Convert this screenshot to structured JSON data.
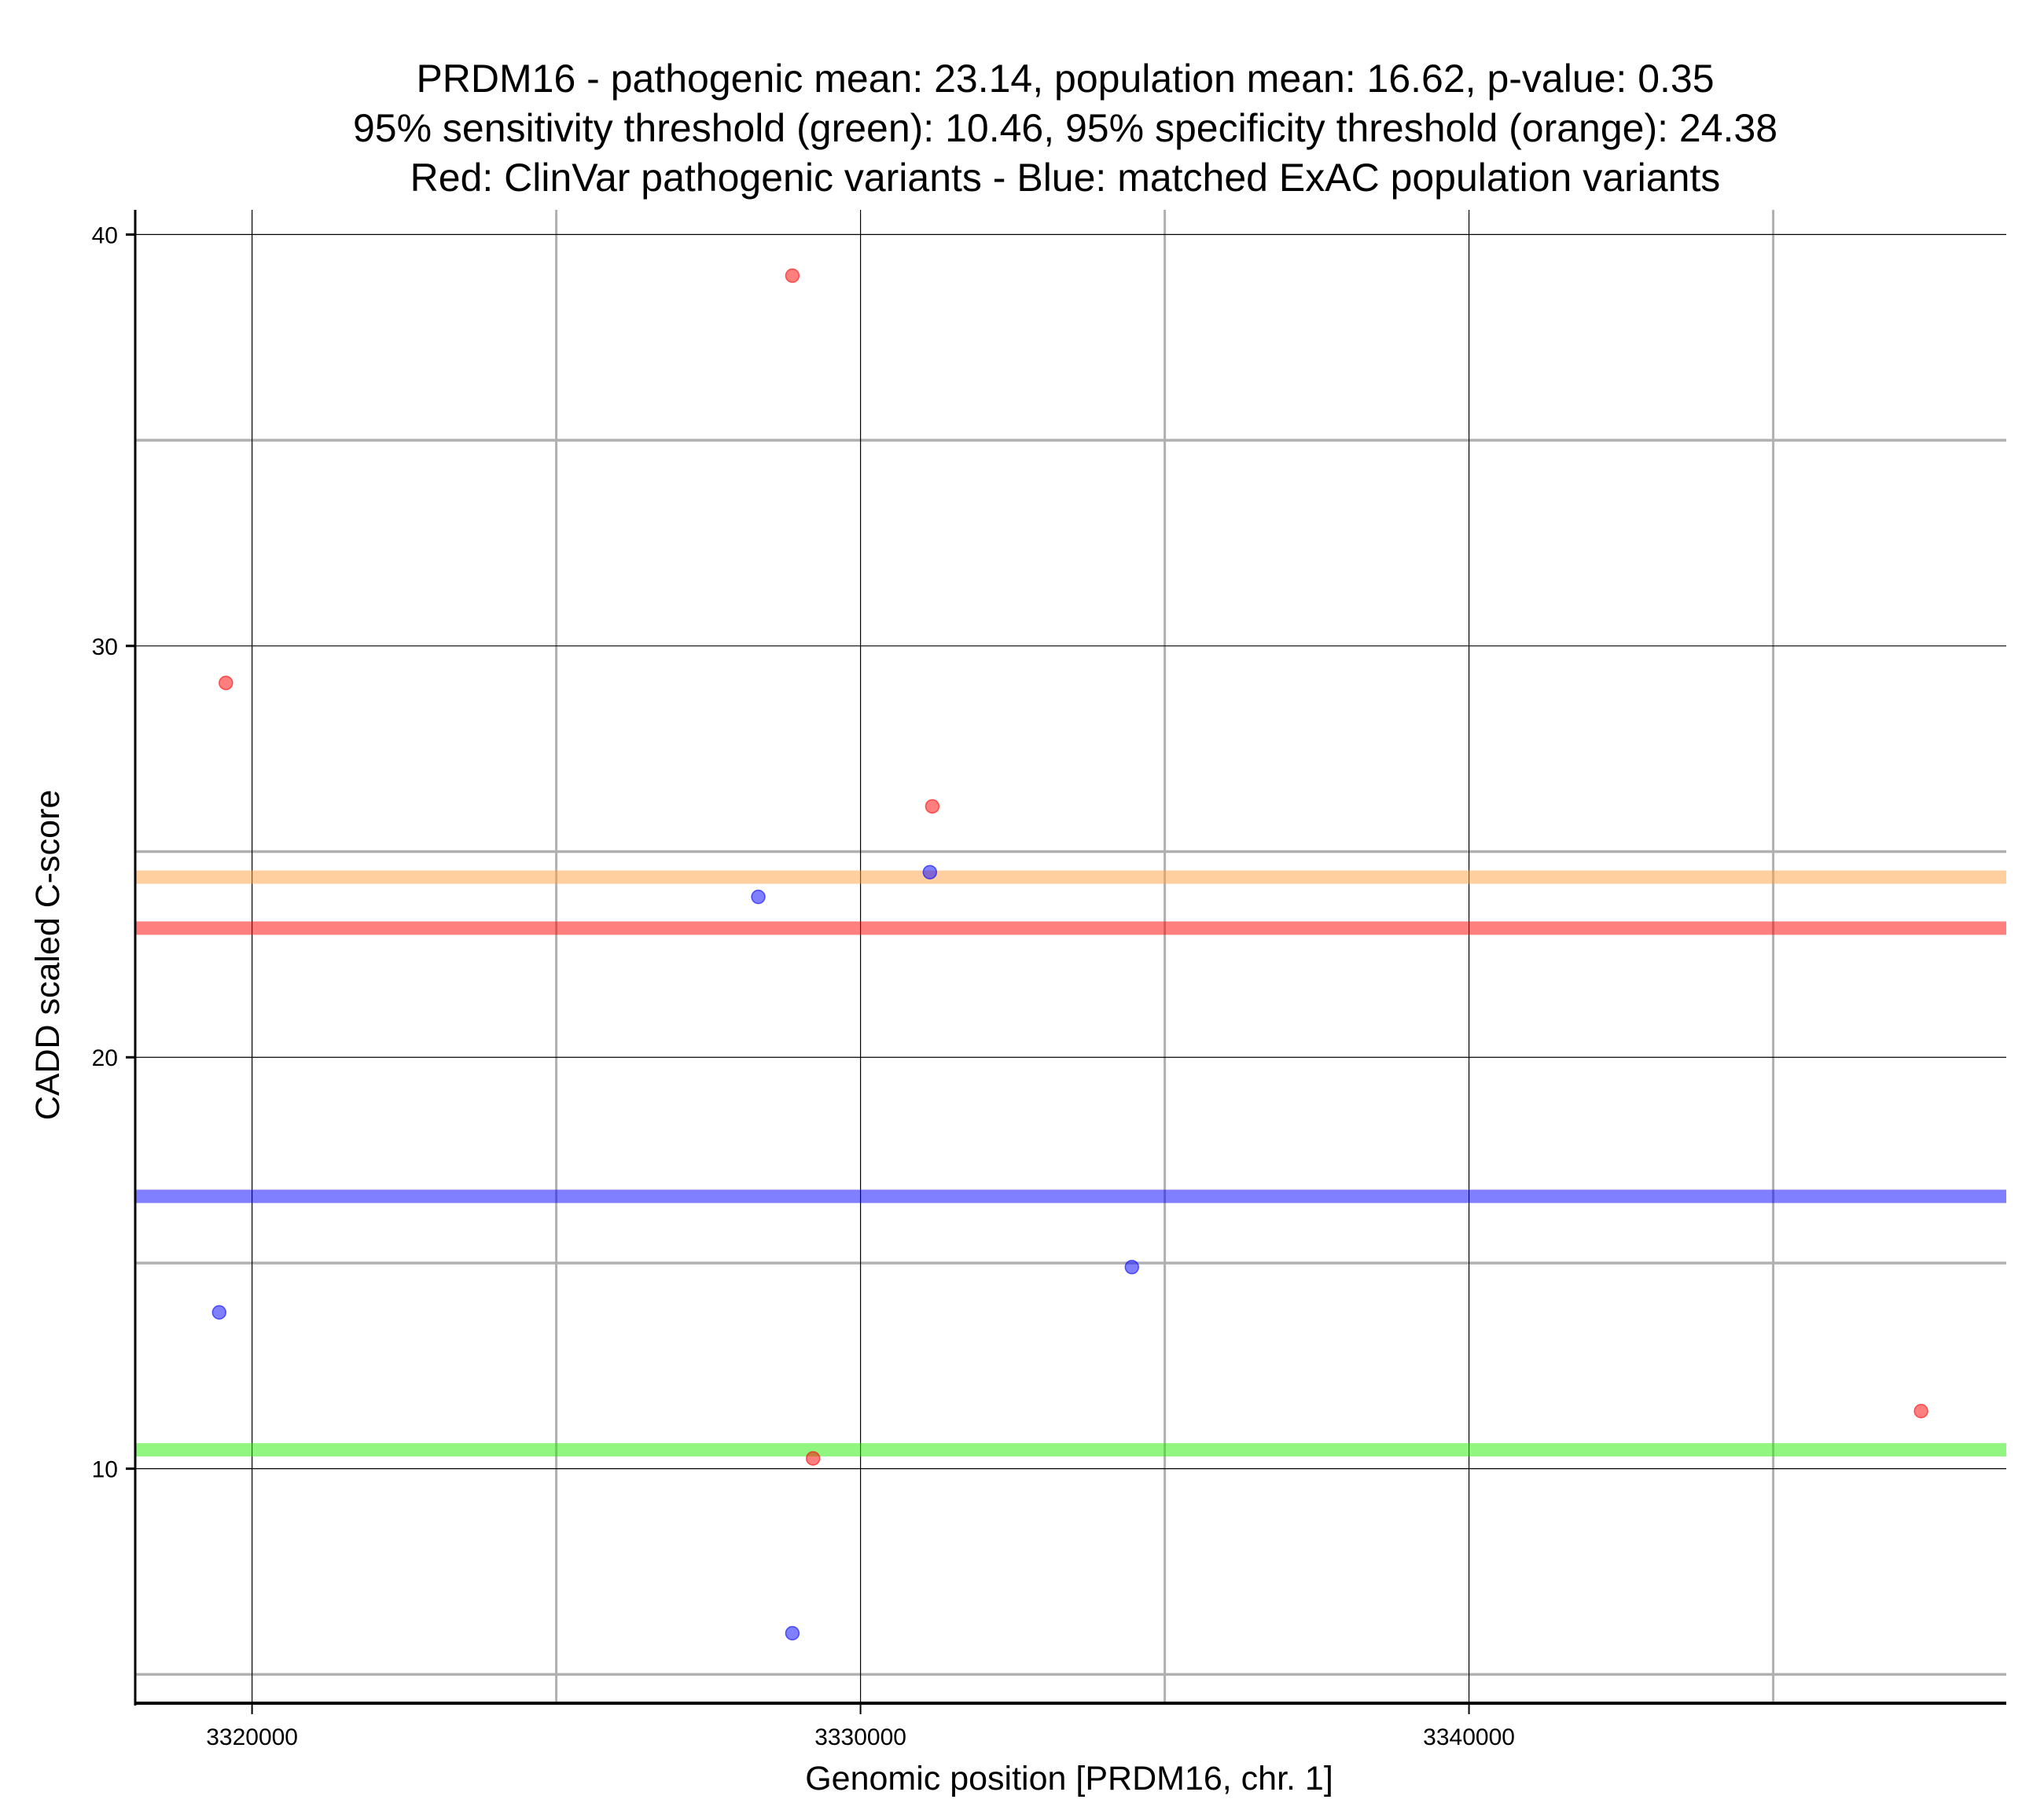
{
  "chart_data": {
    "type": "scatter",
    "title": [
      "PRDM16 - pathogenic mean: 23.14, population mean: 16.62, p-value: 0.35",
      "95% sensitivity threshold (green): 10.46, 95% specificity threshold (orange): 24.38",
      "Red: ClinVar pathogenic variants - Blue: matched ExAC population variants"
    ],
    "xlabel": "Genomic position [PRDM16, chr. 1]",
    "ylabel": "CADD scaled C-score",
    "xlim": [
      3318080,
      3348830
    ],
    "ylim": [
      4.3,
      40.6
    ],
    "xticks": [
      3320000,
      3330000,
      3340000
    ],
    "xtick_labels": [
      "3320000",
      "3330000",
      "3340000"
    ],
    "xminor": [
      3325000,
      3335000,
      3345000
    ],
    "yticks": [
      10,
      20,
      30,
      40
    ],
    "ytick_labels": [
      "10",
      "20",
      "30",
      "40"
    ],
    "yminor": [
      5,
      15,
      25,
      35
    ],
    "grid": true,
    "hlines": [
      {
        "name": "specificity-threshold",
        "value": 24.38,
        "color": "#ffa040"
      },
      {
        "name": "pathogenic-mean",
        "value": 23.14,
        "color": "#ff0000"
      },
      {
        "name": "population-mean",
        "value": 16.62,
        "color": "#0000ff"
      },
      {
        "name": "sensitivity-threshold",
        "value": 10.46,
        "color": "#22ee00"
      }
    ],
    "series": [
      {
        "name": "ClinVar pathogenic",
        "color": "#ff0000",
        "points": [
          [
            3328880,
            39.0
          ],
          [
            3319570,
            29.1
          ],
          [
            3331180,
            26.1
          ],
          [
            3347430,
            11.4
          ],
          [
            3329220,
            10.25
          ]
        ]
      },
      {
        "name": "ExAC population",
        "color": "#0000ff",
        "points": [
          [
            3331140,
            24.5
          ],
          [
            3328320,
            23.9
          ],
          [
            3334460,
            14.9
          ],
          [
            3319460,
            13.8
          ],
          [
            3328880,
            6.0
          ]
        ]
      }
    ]
  }
}
